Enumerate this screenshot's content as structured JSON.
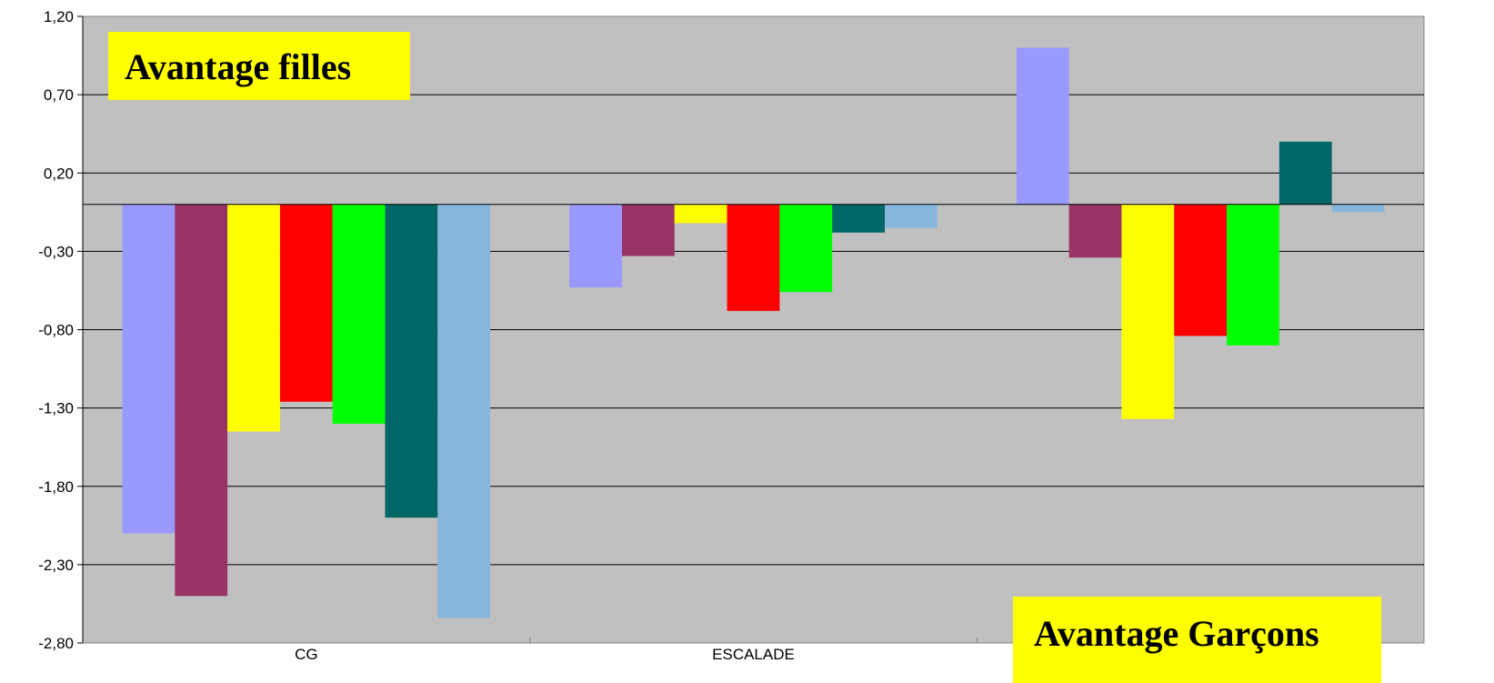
{
  "chart_data": {
    "type": "bar",
    "categories": [
      "CG",
      "ESCALADE",
      ""
    ],
    "ylim": [
      -2.8,
      1.2
    ],
    "yticks": [
      "1,20",
      "0,70",
      "0,20",
      "-0,30",
      "-0,80",
      "-1,30",
      "-1,80",
      "-2,30",
      "-2,80"
    ],
    "ytick_values": [
      1.2,
      0.7,
      0.2,
      -0.3,
      -0.8,
      -1.3,
      -1.8,
      -2.3,
      -2.8
    ],
    "grid": true,
    "series": [
      {
        "color": "#9999FF",
        "values": [
          -2.1,
          -0.53,
          1.0
        ]
      },
      {
        "color": "#993366",
        "values": [
          -2.5,
          -0.33,
          -0.34
        ]
      },
      {
        "color": "#FFFF00",
        "values": [
          -1.45,
          -0.12,
          -1.37
        ]
      },
      {
        "color": "#FF0000",
        "values": [
          -1.26,
          -0.68,
          -0.84
        ]
      },
      {
        "color": "#00FF00",
        "values": [
          -1.4,
          -0.56,
          -0.9
        ]
      },
      {
        "color": "#006666",
        "values": [
          -2.0,
          -0.18,
          0.4
        ]
      },
      {
        "color": "#87B6DC",
        "values": [
          -2.64,
          -0.15,
          -0.05
        ]
      }
    ],
    "annotations": [
      "Avantage filles",
      "Avantage Garçons"
    ],
    "plot_background": "#C0C0C0",
    "annotation_background": "#FFFF00"
  }
}
